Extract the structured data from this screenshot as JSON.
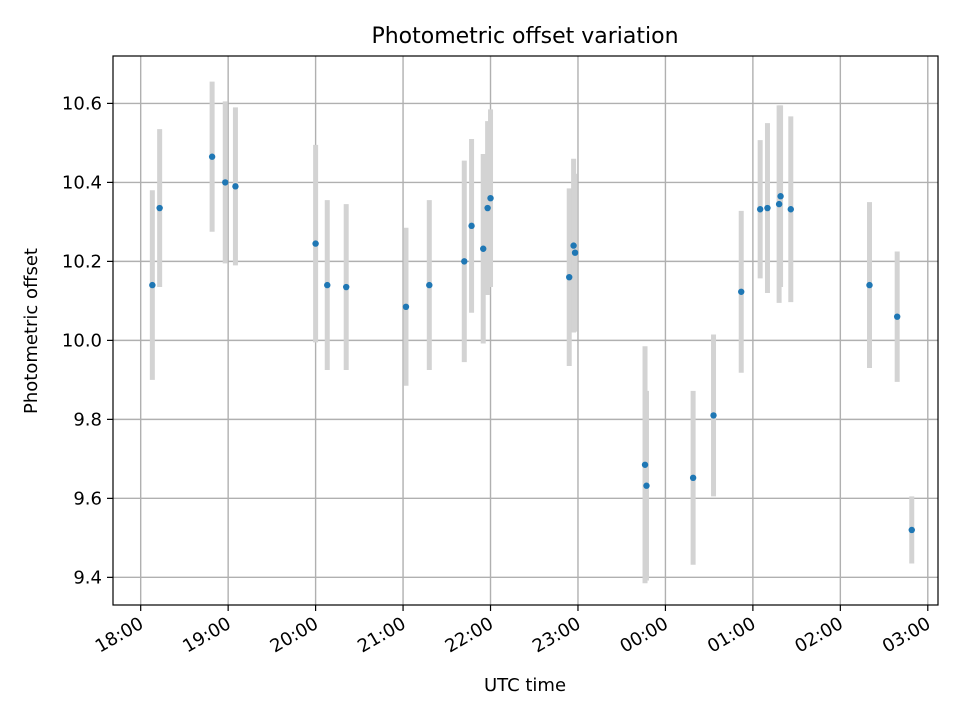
{
  "chart_data": {
    "type": "scatter",
    "title": "Photometric offset variation",
    "xlabel": "UTC time",
    "ylabel": "Photometric offset",
    "x_axis": "time",
    "xlim": [
      "17:41",
      "03:07"
    ],
    "xtick_labels": [
      "18:00",
      "19:00",
      "20:00",
      "21:00",
      "22:00",
      "23:00",
      "00:00",
      "01:00",
      "02:00",
      "03:00"
    ],
    "ylim": [
      9.33,
      10.72
    ],
    "yticks": [
      9.4,
      9.6,
      9.8,
      10.0,
      10.2,
      10.4,
      10.6
    ],
    "ytick_labels": [
      "9.4",
      "9.6",
      "9.8",
      "10.0",
      "10.2",
      "10.4",
      "10.6"
    ],
    "grid": true,
    "colors": {
      "points": "#1f77b4",
      "error_bars": "#d3d3d3"
    },
    "points": [
      {
        "x": "18:08",
        "y": 10.14,
        "err": 0.24
      },
      {
        "x": "18:13",
        "y": 10.335,
        "err": 0.2
      },
      {
        "x": "18:49",
        "y": 10.465,
        "err": 0.19
      },
      {
        "x": "18:58",
        "y": 10.4,
        "err": 0.205
      },
      {
        "x": "19:05",
        "y": 10.39,
        "err": 0.2
      },
      {
        "x": "20:00",
        "y": 10.245,
        "err": 0.25
      },
      {
        "x": "20:08",
        "y": 10.14,
        "err": 0.215
      },
      {
        "x": "20:21",
        "y": 10.135,
        "err": 0.21
      },
      {
        "x": "21:02",
        "y": 10.085,
        "err": 0.2
      },
      {
        "x": "21:18",
        "y": 10.14,
        "err": 0.215
      },
      {
        "x": "21:42",
        "y": 10.2,
        "err": 0.255
      },
      {
        "x": "21:47",
        "y": 10.29,
        "err": 0.22
      },
      {
        "x": "21:55",
        "y": 10.232,
        "err": 0.24
      },
      {
        "x": "21:58",
        "y": 10.335,
        "err": 0.22
      },
      {
        "x": "22:00",
        "y": 10.36,
        "err": 0.225
      },
      {
        "x": "22:54",
        "y": 10.16,
        "err": 0.225
      },
      {
        "x": "22:57",
        "y": 10.24,
        "err": 0.22
      },
      {
        "x": "22:58",
        "y": 10.222,
        "err": 0.2
      },
      {
        "x": "23:46",
        "y": 9.685,
        "err": 0.3
      },
      {
        "x": "23:47",
        "y": 9.632,
        "err": 0.24
      },
      {
        "x": "00:19",
        "y": 9.652,
        "err": 0.22
      },
      {
        "x": "00:33",
        "y": 9.81,
        "err": 0.205
      },
      {
        "x": "00:52",
        "y": 10.123,
        "err": 0.205
      },
      {
        "x": "01:05",
        "y": 10.332,
        "err": 0.175
      },
      {
        "x": "01:10",
        "y": 10.335,
        "err": 0.215
      },
      {
        "x": "01:18",
        "y": 10.345,
        "err": 0.25
      },
      {
        "x": "01:19",
        "y": 10.365,
        "err": 0.23
      },
      {
        "x": "01:26",
        "y": 10.332,
        "err": 0.235
      },
      {
        "x": "02:20",
        "y": 10.14,
        "err": 0.21
      },
      {
        "x": "02:39",
        "y": 10.06,
        "err": 0.165
      },
      {
        "x": "02:49",
        "y": 9.52,
        "err": 0.085
      }
    ]
  }
}
